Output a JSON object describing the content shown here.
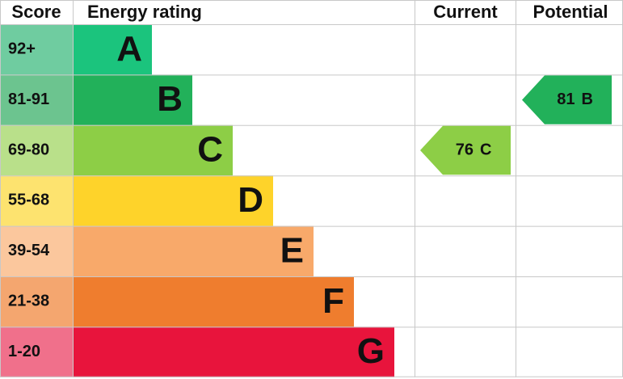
{
  "headers": {
    "score": "Score",
    "rating": "Energy rating",
    "current": "Current",
    "potential": "Potential"
  },
  "bands": [
    {
      "score": "92+",
      "letter": "A",
      "color": "#1bc47d",
      "score_color": "#6fcca0"
    },
    {
      "score": "81-91",
      "letter": "B",
      "color": "#22b15a",
      "score_color": "#6cc48f"
    },
    {
      "score": "69-80",
      "letter": "C",
      "color": "#8dce46",
      "score_color": "#b9e08a"
    },
    {
      "score": "55-68",
      "letter": "D",
      "color": "#fed32a",
      "score_color": "#fde36f"
    },
    {
      "score": "39-54",
      "letter": "E",
      "color": "#f8a96a",
      "score_color": "#fbc79d"
    },
    {
      "score": "21-38",
      "letter": "F",
      "color": "#ef7d2e",
      "score_color": "#f4a66f"
    },
    {
      "score": "1-20",
      "letter": "G",
      "color": "#e8143c",
      "score_color": "#f0708b"
    }
  ],
  "current": {
    "score": 76,
    "rating": "C"
  },
  "potential": {
    "score": 81,
    "rating": "B"
  }
}
